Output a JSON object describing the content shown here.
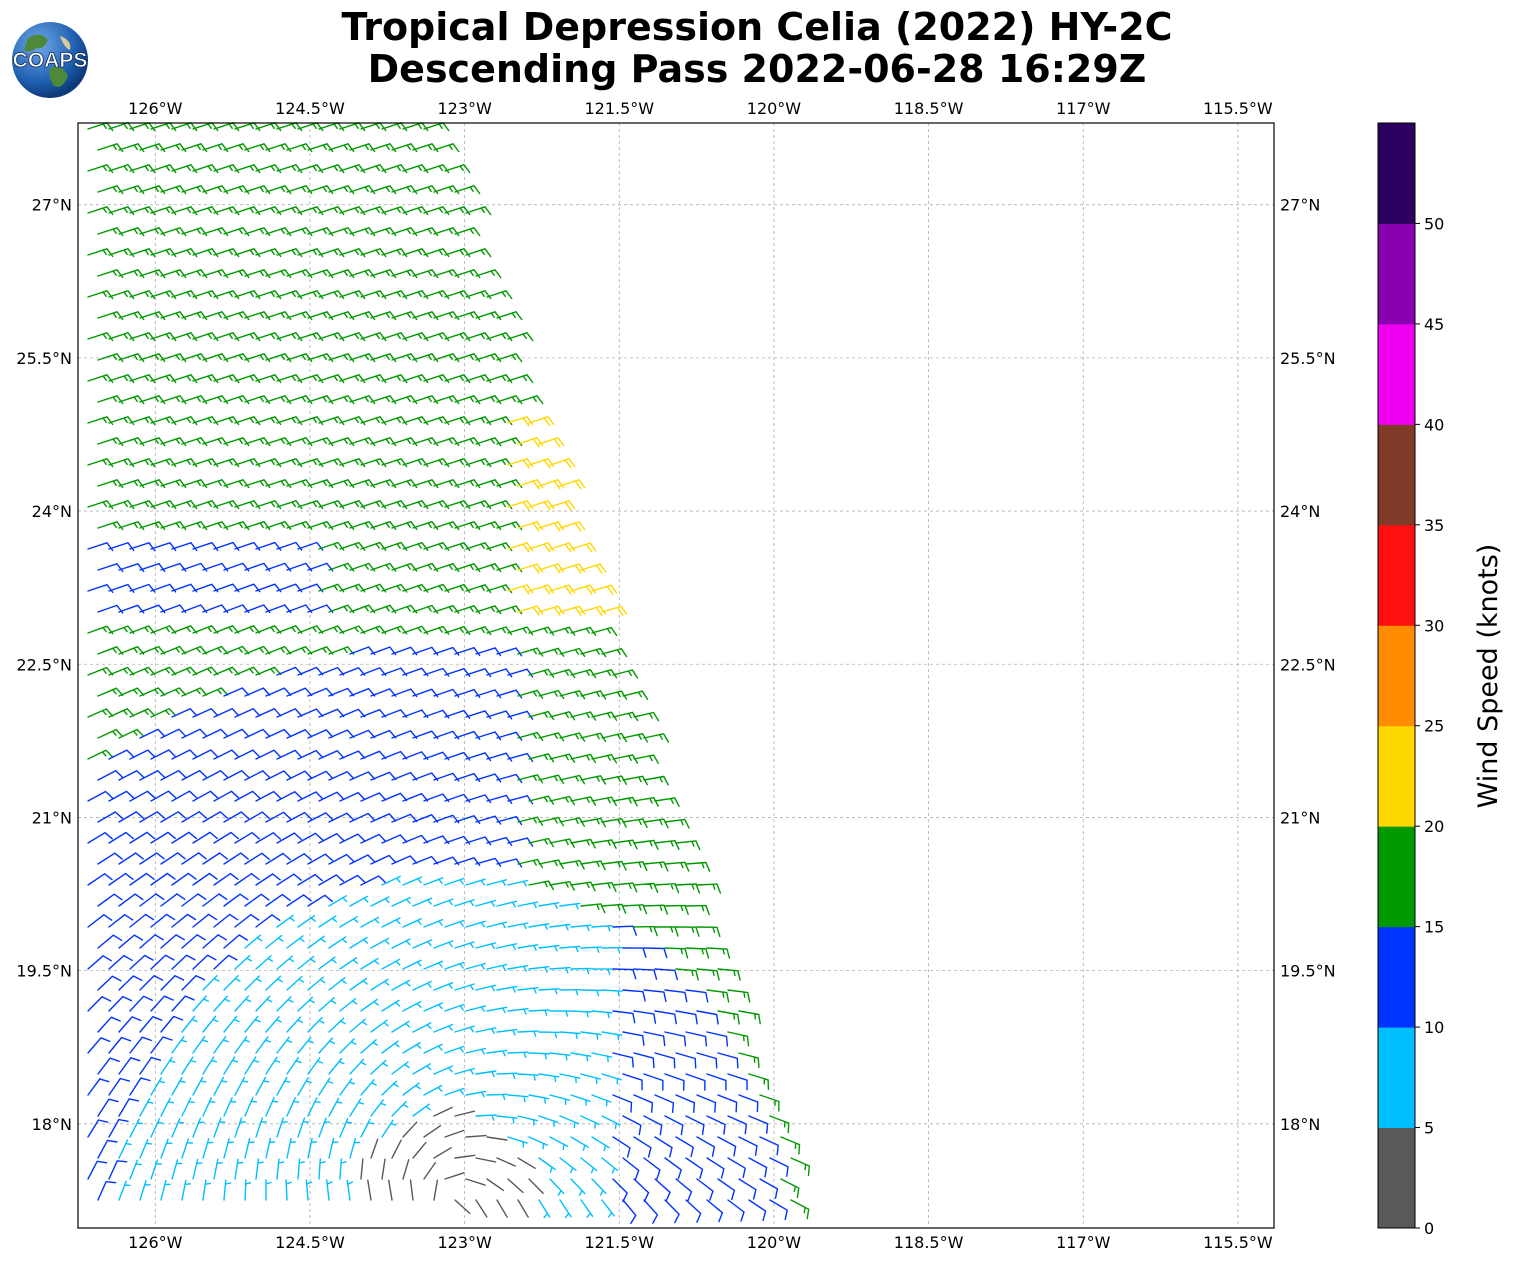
{
  "title": {
    "line1": "Tropical Depression Celia (2022) HY-2C",
    "line2": "Descending Pass 2022-06-28 16:29Z"
  },
  "logo": {
    "text": "COAPS",
    "icon": "globe-logo-icon"
  },
  "map": {
    "lon_labels": [
      "126°W",
      "124.5°W",
      "123°W",
      "121.5°W",
      "120°W",
      "118.5°W",
      "117°W",
      "115.5°W"
    ],
    "lat_labels": [
      "27°N",
      "25.5°N",
      "24°N",
      "22.5°N",
      "21°N",
      "19.5°N",
      "18°N"
    ],
    "lon_range": [
      -126.75,
      -115.15
    ],
    "lat_range": [
      16.98,
      27.8
    ],
    "gridlines": true,
    "swath_edge": "right",
    "storm_center": {
      "lon": -123.2,
      "lat": 17.2
    }
  },
  "colorbar": {
    "title": "Wind Speed (knots)",
    "ticks": [
      "0",
      "5",
      "10",
      "15",
      "20",
      "25",
      "30",
      "35",
      "40",
      "45",
      "50"
    ],
    "bins": [
      {
        "range": "0-5",
        "color": "#595959"
      },
      {
        "range": "5-10",
        "color": "#00bfff"
      },
      {
        "range": "10-15",
        "color": "#0033ff"
      },
      {
        "range": "15-20",
        "color": "#009900"
      },
      {
        "range": "20-25",
        "color": "#ffd700"
      },
      {
        "range": "25-30",
        "color": "#ff8c00"
      },
      {
        "range": "30-35",
        "color": "#ff1010"
      },
      {
        "range": "35-40",
        "color": "#7f3b28"
      },
      {
        "range": "40-45",
        "color": "#f000f0"
      },
      {
        "range": "45-50",
        "color": "#8800b0"
      },
      {
        "range": "50+",
        "color": "#2b0060"
      }
    ]
  }
}
